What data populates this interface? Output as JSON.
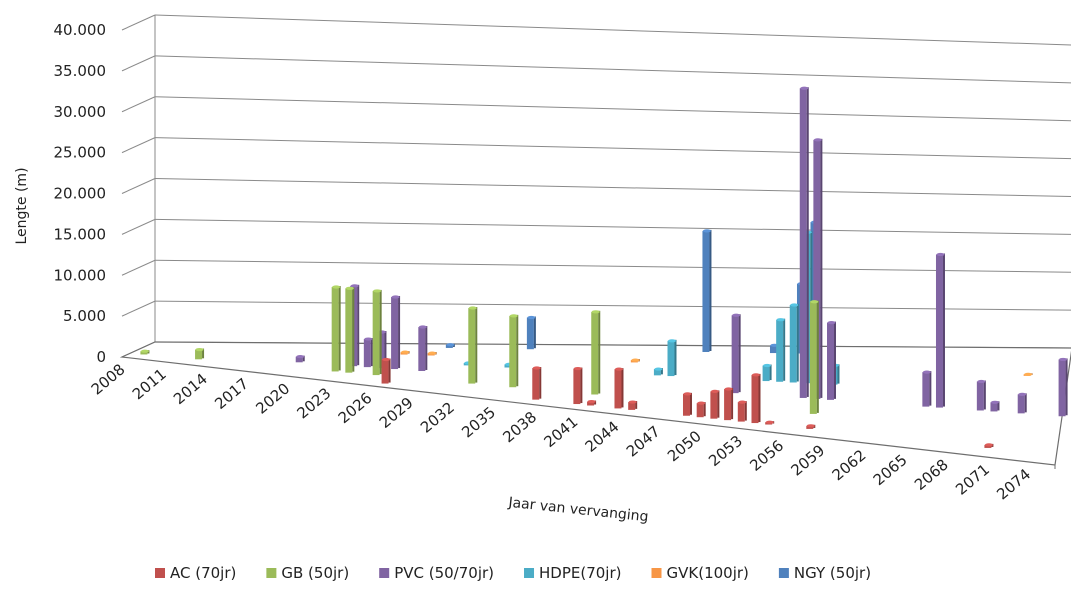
{
  "chart_data": {
    "type": "bar",
    "ylabel": "Lengte (m)",
    "xlabel": "Jaar van vervanging",
    "y_ticks": [
      "0",
      "5.000",
      "10.000",
      "15.000",
      "20.000",
      "25.000",
      "30.000",
      "35.000",
      "40.000"
    ],
    "ylim": [
      0,
      40000
    ],
    "xlim": [
      2008,
      2076
    ],
    "x_ticks": [
      "2008",
      "2011",
      "2014",
      "2017",
      "2020",
      "2023",
      "2026",
      "2029",
      "2032",
      "2035",
      "2038",
      "2041",
      "2044",
      "2047",
      "2050",
      "2053",
      "2056",
      "2059",
      "2062",
      "2065",
      "2068",
      "2071",
      "2074"
    ],
    "grid": true,
    "legend_position": "bottom",
    "series": [
      {
        "name": "AC (70jr)",
        "color": "#c0504d",
        "points": [
          {
            "x": 2027,
            "y": 3000
          },
          {
            "x": 2038,
            "y": 4000
          },
          {
            "x": 2041,
            "y": 4500
          },
          {
            "x": 2042,
            "y": 500
          },
          {
            "x": 2044,
            "y": 5000
          },
          {
            "x": 2045,
            "y": 1000
          },
          {
            "x": 2049,
            "y": 2800
          },
          {
            "x": 2050,
            "y": 1800
          },
          {
            "x": 2051,
            "y": 3500
          },
          {
            "x": 2052,
            "y": 4000
          },
          {
            "x": 2053,
            "y": 2500
          },
          {
            "x": 2054,
            "y": 6200
          },
          {
            "x": 2055,
            "y": 300
          },
          {
            "x": 2058,
            "y": 400
          },
          {
            "x": 2071,
            "y": 400
          }
        ]
      },
      {
        "name": "GB (50jr)",
        "color": "#9bbb59",
        "points": [
          {
            "x": 2009,
            "y": 400
          },
          {
            "x": 2013,
            "y": 1200
          },
          {
            "x": 2023,
            "y": 10500
          },
          {
            "x": 2024,
            "y": 10500
          },
          {
            "x": 2026,
            "y": 10500
          },
          {
            "x": 2033,
            "y": 9500
          },
          {
            "x": 2036,
            "y": 9000
          },
          {
            "x": 2042,
            "y": 10500
          },
          {
            "x": 2058,
            "y": 14500
          }
        ]
      },
      {
        "name": "PVC (50/70jr)",
        "color": "#8064a2",
        "points": [
          {
            "x": 2020,
            "y": 700
          },
          {
            "x": 2024,
            "y": 10000
          },
          {
            "x": 2025,
            "y": 3500
          },
          {
            "x": 2026,
            "y": 4500
          },
          {
            "x": 2027,
            "y": 9000
          },
          {
            "x": 2029,
            "y": 5500
          },
          {
            "x": 2052,
            "y": 10000
          },
          {
            "x": 2057,
            "y": 40000
          },
          {
            "x": 2058,
            "y": 33500
          },
          {
            "x": 2059,
            "y": 10000
          },
          {
            "x": 2066,
            "y": 4500
          },
          {
            "x": 2067,
            "y": 20000
          },
          {
            "x": 2070,
            "y": 3800
          },
          {
            "x": 2071,
            "y": 1200
          },
          {
            "x": 2073,
            "y": 2500
          },
          {
            "x": 2076,
            "y": 7500
          }
        ]
      },
      {
        "name": "HDPE(70jr)",
        "color": "#4bacc6",
        "points": [
          {
            "x": 2032,
            "y": 300
          },
          {
            "x": 2035,
            "y": 400
          },
          {
            "x": 2046,
            "y": 800
          },
          {
            "x": 2047,
            "y": 4500
          },
          {
            "x": 2054,
            "y": 2000
          },
          {
            "x": 2055,
            "y": 8000
          },
          {
            "x": 2056,
            "y": 10000
          },
          {
            "x": 2057,
            "y": 19500
          },
          {
            "x": 2059,
            "y": 2500
          }
        ]
      },
      {
        "name": "GVK(100jr)",
        "color": "#f79646",
        "points": [
          {
            "x": 2027,
            "y": 300
          },
          {
            "x": 2029,
            "y": 300
          },
          {
            "x": 2044,
            "y": 300
          },
          {
            "x": 2073,
            "y": 200
          }
        ]
      },
      {
        "name": "NGY (50jr)",
        "color": "#4f81bd",
        "points": [
          {
            "x": 2030,
            "y": 400
          },
          {
            "x": 2036,
            "y": 4000
          },
          {
            "x": 2049,
            "y": 15500
          },
          {
            "x": 2054,
            "y": 1000
          },
          {
            "x": 2056,
            "y": 9000
          },
          {
            "x": 2057,
            "y": 17000
          }
        ]
      }
    ]
  }
}
